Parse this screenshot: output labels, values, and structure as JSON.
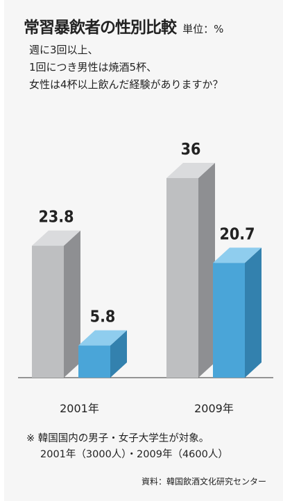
{
  "header": {
    "title": "常習暴飲者の性別比較",
    "unit": "単位：%"
  },
  "question": [
    "週に3回以上、",
    "1回につき男性は焼酒5杯、",
    "女性は4杯以上飲んだ経験がありますか？"
  ],
  "note": {
    "line1": "※ 韓国国内の男子・女子大学生が対象。",
    "line2": "2001年（3000人）・2009年（4600人）"
  },
  "source": "資料：韓国飲酒文化研究センター",
  "colors": {
    "male_front": "#bebfc1",
    "male_side": "#8e8f92",
    "male_top": "#dadbdd",
    "female_front": "#4aa5d8",
    "female_side": "#3381ae",
    "female_top": "#8fcdee"
  },
  "chart_data": {
    "type": "bar",
    "categories": [
      "2001年",
      "2009年"
    ],
    "series": [
      {
        "values": [
          23.8,
          36
        ]
      },
      {
        "values": [
          5.8,
          20.7
        ]
      }
    ],
    "value_labels": [
      [
        "23.8",
        "36"
      ],
      [
        "5.8",
        "20.7"
      ]
    ],
    "ylim": [
      0,
      36
    ]
  }
}
